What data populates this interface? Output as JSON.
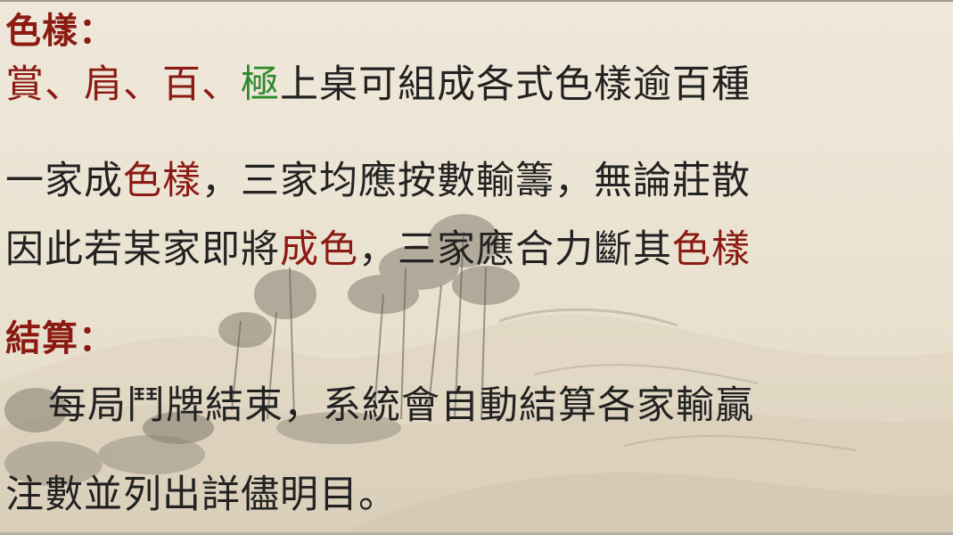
{
  "section1": {
    "title": "色樣：",
    "line1": {
      "s1": "賞",
      "sep1": "、",
      "s2": "肩",
      "sep2": "、",
      "s3": "百",
      "sep3": "、",
      "s4": "極",
      "rest": "上桌可組成各式色樣逾百種"
    },
    "line2": {
      "a": "一家成",
      "b": "色樣",
      "c": "，三家均應按數輸籌，無論莊散"
    },
    "line3": {
      "a": "因此若某家即將",
      "b": "成色",
      "c": "，三家應合力斷其",
      "d": "色樣"
    }
  },
  "section2": {
    "title": "結算：",
    "line1": "每局鬥牌結束，系統會自動結算各家輸贏",
    "line2": "注數並列出詳儘明目。"
  },
  "colors": {
    "red": "#8b1a12",
    "green": "#2d8a2d",
    "text": "#222222"
  }
}
